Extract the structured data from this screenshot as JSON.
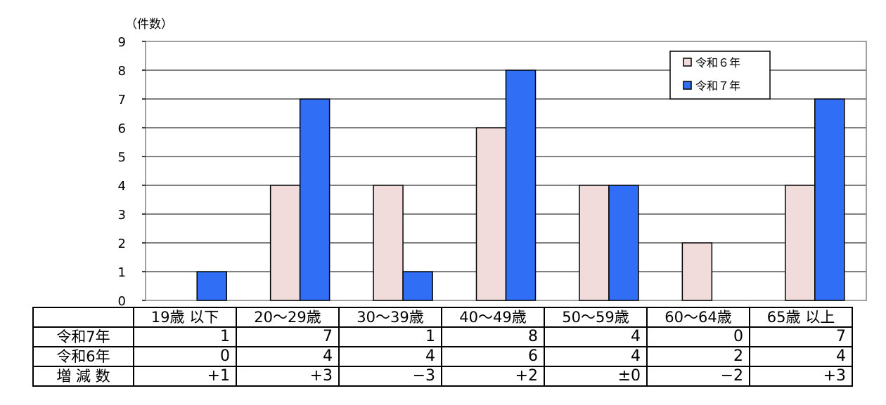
{
  "chart_data": {
    "type": "bar",
    "unit_label": "（件数）",
    "categories": [
      "19歳以下",
      "20～29歳",
      "30～39歳",
      "40～49歳",
      "50～59歳",
      "60～64歳",
      "65歳以上"
    ],
    "series": [
      {
        "name": "令和６年",
        "values": [
          0,
          4,
          4,
          6,
          4,
          2,
          4
        ],
        "color": "#f2dcdb"
      },
      {
        "name": "令和７年",
        "values": [
          1,
          7,
          1,
          8,
          4,
          0,
          7
        ],
        "color": "#2f6ef5"
      }
    ],
    "ylim": [
      0,
      9
    ],
    "yticks": [
      0,
      1,
      2,
      3,
      4,
      5,
      6,
      7,
      8,
      9
    ],
    "grid": true,
    "legend_position": "top-right"
  },
  "table": {
    "headers": [
      "19歳 以下",
      "20～29歳",
      "30～39歳",
      "40～49歳",
      "50～59歳",
      "60～64歳",
      "65歳 以上"
    ],
    "rows": [
      {
        "label": "令和7年",
        "values": [
          "1",
          "7",
          "1",
          "8",
          "4",
          "0",
          "7"
        ]
      },
      {
        "label": "令和6年",
        "values": [
          "0",
          "4",
          "4",
          "6",
          "4",
          "2",
          "4"
        ]
      },
      {
        "label": "増 減 数",
        "values": [
          "+1",
          "+3",
          "−3",
          "+2",
          "±0",
          "−2",
          "+3"
        ]
      }
    ]
  }
}
